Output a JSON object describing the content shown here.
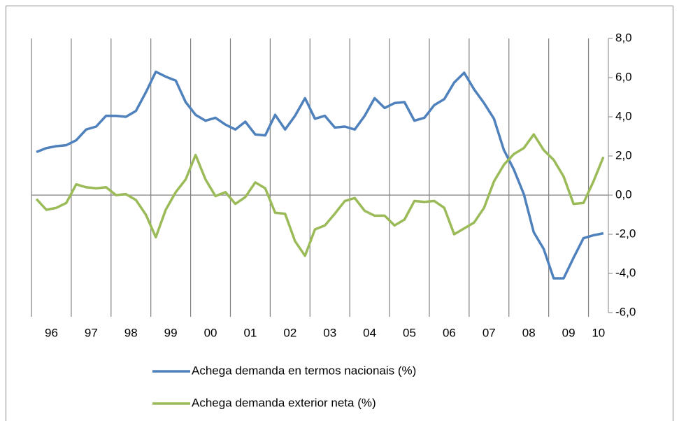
{
  "chart_data": {
    "type": "line",
    "categories": [
      "96",
      null,
      null,
      null,
      "97",
      null,
      null,
      null,
      "98",
      null,
      null,
      null,
      "99",
      null,
      null,
      null,
      "00",
      null,
      null,
      null,
      "01",
      null,
      null,
      null,
      "02",
      null,
      null,
      null,
      "03",
      null,
      null,
      null,
      "04",
      null,
      null,
      null,
      "05",
      null,
      null,
      null,
      "06",
      null,
      null,
      null,
      "07",
      null,
      null,
      null,
      "08",
      null,
      null,
      null,
      "09",
      null,
      null,
      null,
      "10",
      null
    ],
    "series": [
      {
        "name": "Achega demanda en termos nacionais (%)",
        "color": "#4f81bd",
        "values": [
          2.2,
          2.4,
          2.5,
          2.55,
          2.8,
          3.35,
          3.5,
          4.05,
          4.05,
          4.0,
          4.3,
          5.25,
          6.3,
          6.05,
          5.85,
          4.75,
          4.1,
          3.8,
          3.95,
          3.6,
          3.35,
          3.75,
          3.1,
          3.05,
          4.1,
          3.35,
          4.05,
          4.95,
          3.9,
          4.05,
          3.45,
          3.5,
          3.35,
          4.05,
          4.95,
          4.45,
          4.7,
          4.75,
          3.8,
          3.95,
          4.6,
          4.9,
          5.75,
          6.25,
          5.4,
          4.7,
          3.9,
          2.3,
          1.3,
          0.05,
          -1.9,
          -2.75,
          -4.25,
          -4.25,
          -3.2,
          -2.2,
          -2.05,
          -1.95
        ]
      },
      {
        "name": "Achega demanda exterior neta (%)",
        "color": "#9bbb59",
        "values": [
          -0.2,
          -0.75,
          -0.65,
          -0.4,
          0.55,
          0.4,
          0.35,
          0.4,
          0.0,
          0.05,
          -0.25,
          -1.0,
          -2.15,
          -0.75,
          0.15,
          0.8,
          2.05,
          0.8,
          -0.05,
          0.15,
          -0.45,
          -0.1,
          0.65,
          0.35,
          -0.9,
          -0.95,
          -2.35,
          -3.1,
          -1.75,
          -1.55,
          -0.95,
          -0.3,
          -0.15,
          -0.8,
          -1.05,
          -1.05,
          -1.55,
          -1.25,
          -0.3,
          -0.35,
          -0.3,
          -0.65,
          -2.0,
          -1.7,
          -1.4,
          -0.65,
          0.7,
          1.55,
          2.1,
          2.4,
          3.1,
          2.3,
          1.8,
          0.95,
          -0.45,
          -0.4,
          0.7,
          1.95
        ]
      }
    ],
    "ylim": [
      -6,
      8
    ],
    "yticks": [
      {
        "value": -6,
        "label": "-6,0"
      },
      {
        "value": -4,
        "label": "-4,0"
      },
      {
        "value": -2,
        "label": "-2,0"
      },
      {
        "value": 0,
        "label": "0,0"
      },
      {
        "value": 2,
        "label": "2,0"
      },
      {
        "value": 4,
        "label": "4,0"
      },
      {
        "value": 6,
        "label": "6,0"
      },
      {
        "value": 8,
        "label": "8,0"
      }
    ],
    "legend": "bottom"
  }
}
